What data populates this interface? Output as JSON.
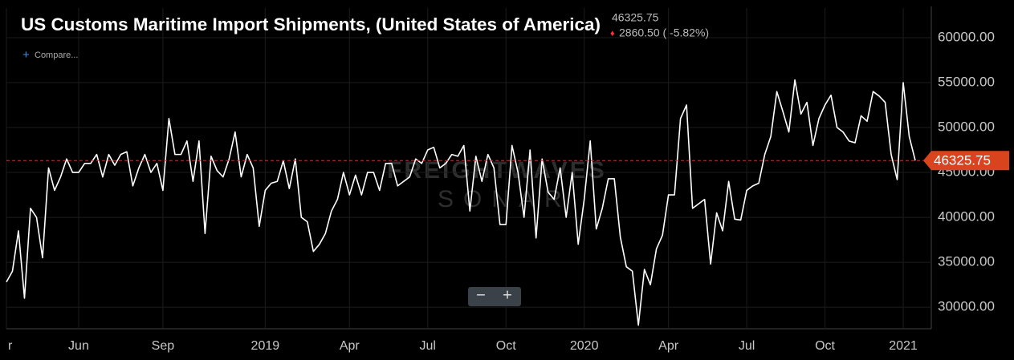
{
  "header": {
    "last_value": "46325.75",
    "change": "2860.50 ( -5.82%)",
    "compare": "Compare..."
  },
  "chart_data": {
    "type": "line",
    "title": "US Customs Maritime Import Shipments, (United States of America)",
    "watermark": [
      "FREIGHTWAVES",
      "SONAR"
    ],
    "color": "#ffffff",
    "categories": [
      "r",
      null,
      null,
      null,
      null,
      null,
      null,
      null,
      null,
      null,
      null,
      null,
      "Jun",
      null,
      null,
      null,
      null,
      null,
      null,
      null,
      null,
      null,
      null,
      null,
      null,
      null,
      "Sep",
      null,
      null,
      null,
      null,
      null,
      null,
      null,
      null,
      null,
      null,
      null,
      null,
      null,
      null,
      null,
      null,
      "2019",
      null,
      null,
      null,
      null,
      null,
      null,
      null,
      null,
      null,
      null,
      null,
      null,
      null,
      "Apr",
      null,
      null,
      null,
      null,
      null,
      null,
      null,
      null,
      null,
      null,
      null,
      null,
      "Jul",
      null,
      null,
      null,
      null,
      null,
      null,
      null,
      null,
      null,
      null,
      null,
      null,
      "Oct",
      null,
      null,
      null,
      null,
      null,
      null,
      null,
      null,
      null,
      null,
      null,
      null,
      "2020",
      null,
      null,
      null,
      null,
      null,
      null,
      null,
      null,
      null,
      null,
      null,
      null,
      null,
      "Apr",
      null,
      null,
      null,
      null,
      null,
      null,
      null,
      null,
      null,
      null,
      null,
      null,
      "Jul",
      null,
      null,
      null,
      null,
      null,
      null,
      null,
      null,
      null,
      null,
      null,
      null,
      "Oct",
      null,
      null,
      null,
      null,
      null,
      null,
      null,
      null,
      null,
      null,
      null,
      null,
      "2021",
      null,
      null
    ],
    "values": [
      32800,
      34000,
      38500,
      31000,
      41000,
      40000,
      35500,
      45500,
      43000,
      44500,
      46500,
      45000,
      45000,
      46000,
      46000,
      47000,
      44500,
      47000,
      45800,
      47000,
      47300,
      43500,
      45500,
      47000,
      45000,
      46000,
      43000,
      51000,
      47000,
      47000,
      48500,
      44000,
      48500,
      38200,
      46800,
      45200,
      44500,
      46500,
      49500,
      44500,
      47000,
      45500,
      39000,
      43000,
      43800,
      44000,
      46300,
      43200,
      46500,
      40000,
      39500,
      36200,
      37000,
      38200,
      40700,
      42000,
      45000,
      42500,
      44700,
      42500,
      45000,
      45000,
      43000,
      46000,
      46000,
      43500,
      44000,
      44500,
      46500,
      46000,
      47500,
      47800,
      45500,
      46000,
      47000,
      46800,
      48000,
      40700,
      46800,
      44000,
      47000,
      45500,
      39200,
      39200,
      48000,
      45000,
      40000,
      47500,
      37700,
      46500,
      42800,
      42000,
      45500,
      40000,
      45000,
      37000,
      42000,
      48500,
      38700,
      41000,
      44300,
      44300,
      37800,
      34500,
      34000,
      28000,
      34200,
      32500,
      36500,
      38000,
      42500,
      42500,
      51000,
      52500,
      41000,
      41500,
      42000,
      34800,
      40500,
      38500,
      44000,
      39800,
      39700,
      43000,
      43500,
      43800,
      47000,
      49000,
      54000,
      51800,
      49500,
      55300,
      51500,
      52800,
      48000,
      51000,
      52500,
      53600,
      50000,
      49500,
      48500,
      48300,
      51300,
      50700,
      54000,
      53500,
      52800,
      47000,
      44200,
      55000,
      49000,
      46325.75
    ],
    "ylim": [
      27600,
      63300
    ],
    "yticks": [
      {
        "value": 30000,
        "label": "30000.00"
      },
      {
        "value": 35000,
        "label": "35000.00"
      },
      {
        "value": 40000,
        "label": "40000.00"
      },
      {
        "value": 45000,
        "label": "45000.00"
      },
      {
        "value": 50000,
        "label": "50000.00"
      },
      {
        "value": 55000,
        "label": "55000.00"
      },
      {
        "value": 60000,
        "label": "60000.00"
      }
    ],
    "grid": true
  }
}
